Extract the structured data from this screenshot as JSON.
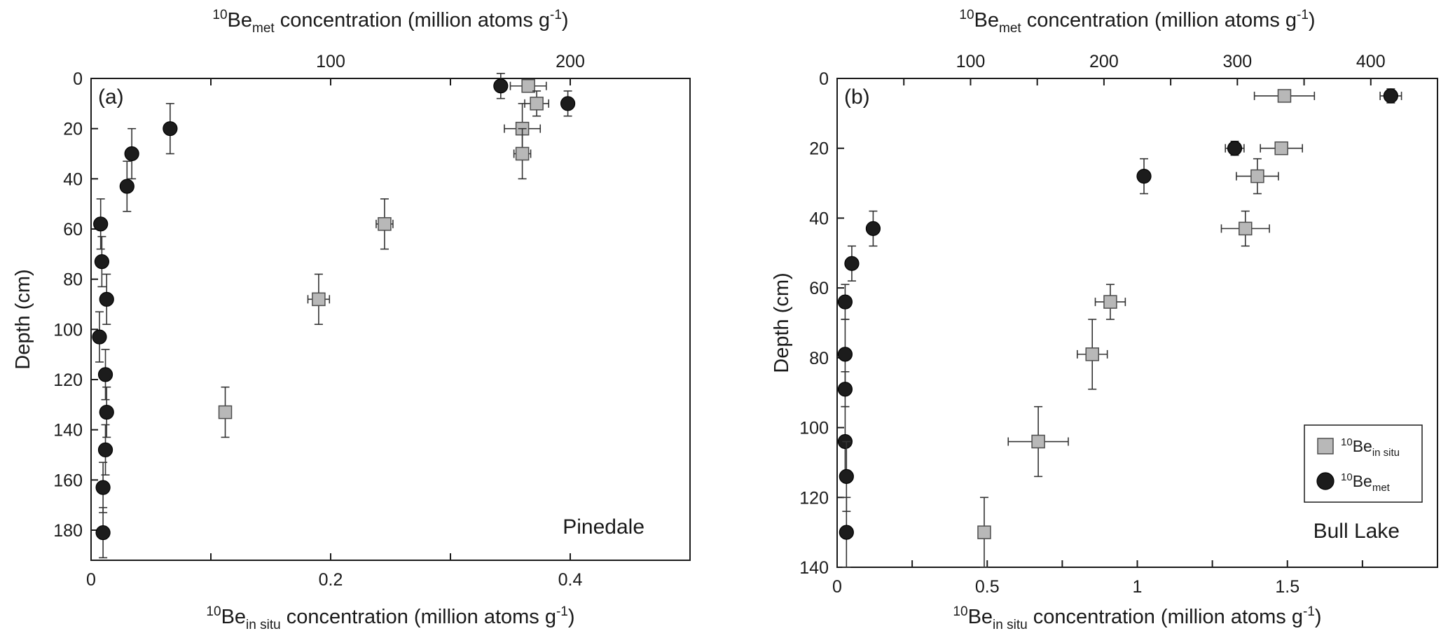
{
  "chart_data": [
    {
      "type": "scatter",
      "panel_label": "(a)",
      "site": "Pinedale",
      "ylabel": "Depth (cm)",
      "ylim": [
        0,
        192
      ],
      "yticks": [
        0,
        20,
        40,
        60,
        80,
        100,
        120,
        140,
        160,
        180
      ],
      "bottom_axis": {
        "label_prefix": "10",
        "label_be": "Be",
        "label_sub": "in situ",
        "label_rest": " concentration (million atoms g",
        "label_sup": "-1",
        "label_end": ")",
        "xlim": [
          0,
          0.5
        ],
        "ticks": [
          0,
          0.1,
          0.2,
          0.3,
          0.4,
          0.5
        ],
        "tick_labels": [
          "0",
          "",
          "0.2",
          "",
          "0.4",
          ""
        ]
      },
      "top_axis": {
        "label_prefix": "10",
        "label_be": "Be",
        "label_sub": "met",
        "label_rest": " concentration (million atoms g",
        "label_sup": "-1",
        "label_end": ")",
        "xlim": [
          0,
          250
        ],
        "ticks": [
          0,
          50,
          100,
          150,
          200,
          250
        ],
        "tick_labels": [
          "",
          "",
          "100",
          "",
          "200",
          ""
        ]
      },
      "series": [
        {
          "name": "10Be in situ",
          "marker": "square",
          "axis": "bottom",
          "points": [
            {
              "x": 0.365,
              "y": 3,
              "xerr": 0.015,
              "yerr": 0
            },
            {
              "x": 0.372,
              "y": 10,
              "xerr": 0.01,
              "yerr": 5
            },
            {
              "x": 0.36,
              "y": 20,
              "xerr": 0.015,
              "yerr": 10
            },
            {
              "x": 0.36,
              "y": 30,
              "xerr": 0.007,
              "yerr": 10
            },
            {
              "x": 0.245,
              "y": 58,
              "xerr": 0.007,
              "yerr": 10
            },
            {
              "x": 0.19,
              "y": 88,
              "xerr": 0.009,
              "yerr": 10
            },
            {
              "x": 0.112,
              "y": 133,
              "xerr": 0,
              "yerr": 10
            }
          ]
        },
        {
          "name": "10Be met",
          "marker": "circle",
          "axis": "top",
          "points": [
            {
              "x": 171,
              "y": 3,
              "xerr": 0,
              "yerr": 5
            },
            {
              "x": 199,
              "y": 10,
              "xerr": 0,
              "yerr": 5
            },
            {
              "x": 33,
              "y": 20,
              "xerr": 0,
              "yerr": 10
            },
            {
              "x": 17,
              "y": 30,
              "xerr": 0,
              "yerr": 10
            },
            {
              "x": 15,
              "y": 43,
              "xerr": 0,
              "yerr": 10
            },
            {
              "x": 4,
              "y": 58,
              "xerr": 0,
              "yerr": 10
            },
            {
              "x": 4.5,
              "y": 73,
              "xerr": 0,
              "yerr": 10
            },
            {
              "x": 6.5,
              "y": 88,
              "xerr": 0,
              "yerr": 10
            },
            {
              "x": 3.5,
              "y": 103,
              "xerr": 0,
              "yerr": 10
            },
            {
              "x": 6,
              "y": 118,
              "xerr": 0,
              "yerr": 10
            },
            {
              "x": 6.5,
              "y": 133,
              "xerr": 0,
              "yerr": 10
            },
            {
              "x": 6,
              "y": 148,
              "xerr": 0,
              "yerr": 10
            },
            {
              "x": 5,
              "y": 163,
              "xerr": 0,
              "yerr": 10
            },
            {
              "x": 5,
              "y": 181,
              "xerr": 0,
              "yerr": 10
            }
          ]
        }
      ]
    },
    {
      "type": "scatter",
      "panel_label": "(b)",
      "site": "Bull Lake",
      "ylabel": "Depth (cm)",
      "ylim": [
        0,
        140
      ],
      "yticks": [
        0,
        20,
        40,
        60,
        80,
        100,
        120,
        140
      ],
      "bottom_axis": {
        "label_prefix": "10",
        "label_be": "Be",
        "label_sub": "in situ",
        "label_rest": " concentration (million atoms g",
        "label_sup": "-1",
        "label_end": ")",
        "xlim": [
          0,
          2
        ],
        "ticks": [
          0,
          0.25,
          0.5,
          0.75,
          1,
          1.25,
          1.5,
          1.75
        ],
        "tick_labels": [
          "0",
          "",
          "0.5",
          "",
          "1",
          "",
          "1.5",
          ""
        ]
      },
      "top_axis": {
        "label_prefix": "10",
        "label_be": "Be",
        "label_sub": "met",
        "label_rest": " concentration (million atoms g",
        "label_sup": "-1",
        "label_end": ")",
        "xlim": [
          0,
          450
        ],
        "ticks": [
          0,
          50,
          100,
          150,
          200,
          250,
          300,
          350,
          400
        ],
        "tick_labels": [
          "",
          "",
          "100",
          "",
          "200",
          "",
          "300",
          "",
          "400"
        ]
      },
      "series": [
        {
          "name": "10Be in situ",
          "marker": "square",
          "axis": "bottom",
          "points": [
            {
              "x": 1.49,
              "y": 5,
              "xerr": 0.1,
              "yerr": 0
            },
            {
              "x": 1.48,
              "y": 20,
              "xerr": 0.07,
              "yerr": 0
            },
            {
              "x": 1.4,
              "y": 28,
              "xerr": 0.07,
              "yerr": 5
            },
            {
              "x": 1.36,
              "y": 43,
              "xerr": 0.08,
              "yerr": 5
            },
            {
              "x": 0.91,
              "y": 64,
              "xerr": 0.05,
              "yerr": 5
            },
            {
              "x": 0.85,
              "y": 79,
              "xerr": 0.05,
              "yerr": 10
            },
            {
              "x": 0.67,
              "y": 104,
              "xerr": 0.1,
              "yerr": 10
            },
            {
              "x": 0.49,
              "y": 130,
              "xerr": 0.02,
              "yerr": 10
            }
          ]
        },
        {
          "name": "10Be met",
          "marker": "circle",
          "axis": "top",
          "points": [
            {
              "x": 415,
              "y": 5,
              "xerr": 8,
              "yerr": 2
            },
            {
              "x": 298,
              "y": 20,
              "xerr": 7,
              "yerr": 2
            },
            {
              "x": 230,
              "y": 28,
              "xerr": 0,
              "yerr": 5
            },
            {
              "x": 27,
              "y": 43,
              "xerr": 0,
              "yerr": 5
            },
            {
              "x": 11,
              "y": 53,
              "xerr": 0,
              "yerr": 5
            },
            {
              "x": 6,
              "y": 64,
              "xerr": 0,
              "yerr": 5
            },
            {
              "x": 6,
              "y": 79,
              "xerr": 0,
              "yerr": 10
            },
            {
              "x": 6,
              "y": 89,
              "xerr": 0,
              "yerr": 5
            },
            {
              "x": 6,
              "y": 104,
              "xerr": 0,
              "yerr": 10
            },
            {
              "x": 7,
              "y": 114,
              "xerr": 0,
              "yerr": 10
            },
            {
              "x": 7,
              "y": 130,
              "xerr": 0,
              "yerr": 10
            }
          ]
        }
      ],
      "legend": {
        "position": "lower-right",
        "entries": [
          {
            "marker": "square",
            "prefix": "10",
            "be": "Be",
            "sub": "in situ"
          },
          {
            "marker": "circle",
            "prefix": "10",
            "be": "Be",
            "sub": "met"
          }
        ]
      }
    }
  ],
  "colors": {
    "square_fill": "#b8b8b8",
    "square_stroke": "#4d4d4d",
    "circle_fill": "#1c1c1c",
    "circle_stroke": "#000000",
    "axis": "#1a1a1a"
  }
}
